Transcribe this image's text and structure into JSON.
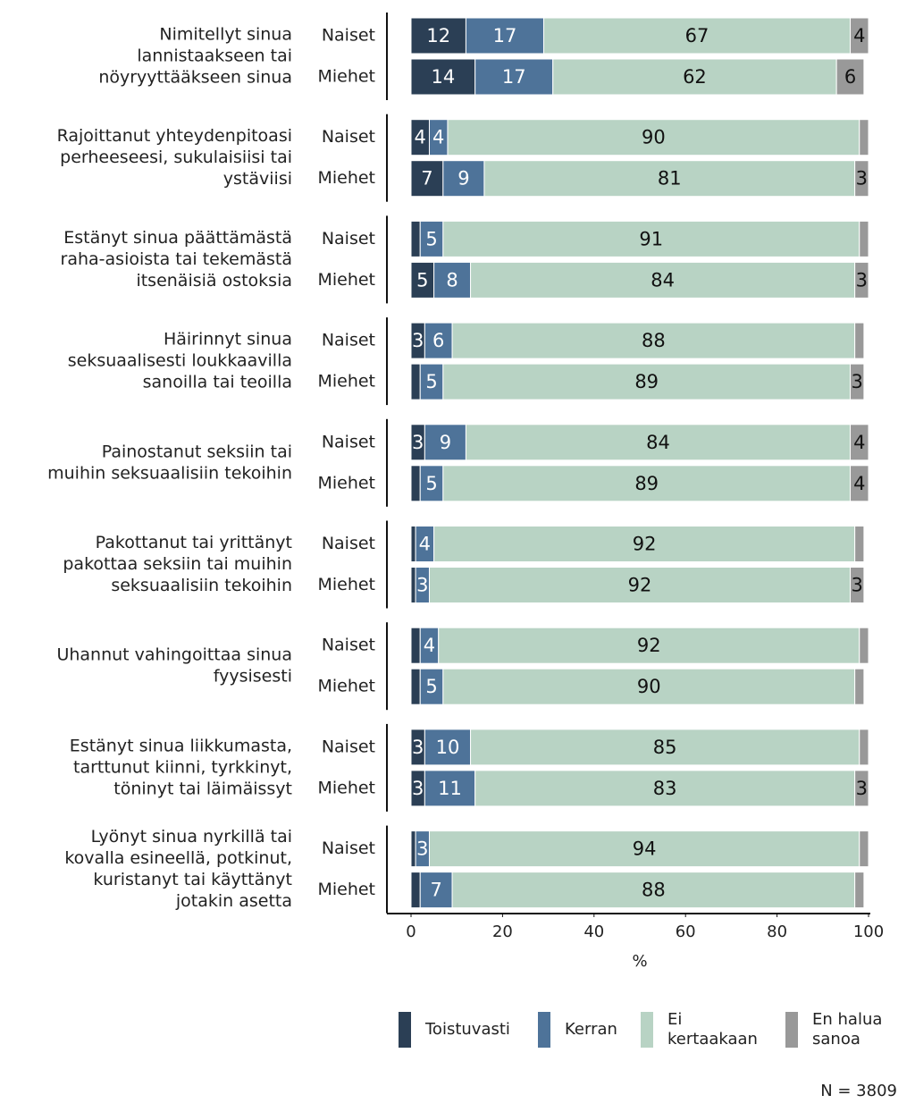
{
  "chart_data": {
    "type": "stacked-barh",
    "group_labels": [
      [
        "Nimitellyt sinua",
        "lannistaakseen tai",
        "nöyryyttääkseen sinua"
      ],
      [
        "Rajoittanut yhteydenpitoasi",
        "perheeseesi, sukulaisiisi tai",
        "ystäviisi"
      ],
      [
        "Estänyt sinua päättämästä",
        "raha-asioista tai tekemästä",
        "itsenäisiä ostoksia"
      ],
      [
        "Häirinnyt sinua",
        "seksuaalisesti loukkaavilla",
        "sanoilla tai teoilla"
      ],
      [
        "Painostanut seksiin tai",
        "muihin seksuaalisiin tekoihin"
      ],
      [
        "Pakottanut tai yrittänyt",
        "pakottaa seksiin tai muihin",
        "seksuaalisiin tekoihin"
      ],
      [
        "Uhannut vahingoittaa sinua",
        "fyysisesti"
      ],
      [
        "Estänyt sinua liikkumasta,",
        "tarttunut kiinni, tyrkkinyt,",
        "töninyt tai läimäissyt"
      ],
      [
        "Lyönyt sinua nyrkillä tai",
        "kovalla esineellä, potkinut,",
        "kuristanyt tai käyttänyt",
        "jotakin asetta"
      ]
    ],
    "categories": [
      "Naiset",
      "Miehet",
      "Naiset",
      "Miehet",
      "Naiset",
      "Miehet",
      "Naiset",
      "Miehet",
      "Naiset",
      "Miehet",
      "Naiset",
      "Miehet",
      "Naiset",
      "Miehet",
      "Naiset",
      "Miehet",
      "Naiset",
      "Miehet"
    ],
    "series": [
      {
        "name": "Toistuvasti",
        "color": "#2b3f55",
        "label_color": "#ffffff",
        "values": [
          12,
          14,
          4,
          7,
          2,
          5,
          3,
          2,
          3,
          2,
          1,
          1,
          2,
          2,
          3,
          3,
          1,
          2
        ]
      },
      {
        "name": "Kerran",
        "color": "#4e7399",
        "label_color": "#ffffff",
        "values": [
          17,
          17,
          4,
          9,
          5,
          8,
          6,
          5,
          9,
          5,
          4,
          3,
          4,
          5,
          10,
          11,
          3,
          7
        ]
      },
      {
        "name": "Ei kertaakaan",
        "color": "#b8d3c4",
        "label_color": "#111111",
        "values": [
          67,
          62,
          90,
          81,
          91,
          84,
          88,
          89,
          84,
          89,
          92,
          92,
          92,
          90,
          85,
          83,
          94,
          88
        ]
      },
      {
        "name": "En halua sanoa",
        "color": "#999999",
        "label_color": "#111111",
        "values": [
          4,
          6,
          2,
          3,
          2,
          3,
          2,
          3,
          4,
          4,
          2,
          3,
          2,
          2,
          2,
          3,
          2,
          2
        ]
      }
    ],
    "xlim": [
      0,
      100
    ],
    "xticks": [
      0,
      20,
      40,
      60,
      80,
      100
    ],
    "xlabel": "%",
    "note": "N = 3809"
  }
}
